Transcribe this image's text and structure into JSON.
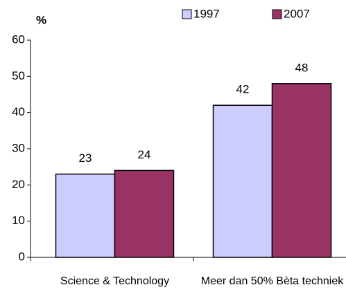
{
  "chart_data": {
    "type": "bar",
    "y_label": "%",
    "categories": [
      "Science & Technology",
      "Meer dan 50% Bèta techniek"
    ],
    "series": [
      {
        "name": "1997",
        "color": "#ccccff",
        "values": [
          23,
          42
        ]
      },
      {
        "name": "2007",
        "color": "#993366",
        "values": [
          24,
          48
        ]
      }
    ],
    "ylim": [
      0,
      60
    ],
    "yticks": [
      0,
      10,
      20,
      30,
      40,
      50,
      60
    ],
    "grid": false,
    "legend": "top-right"
  }
}
